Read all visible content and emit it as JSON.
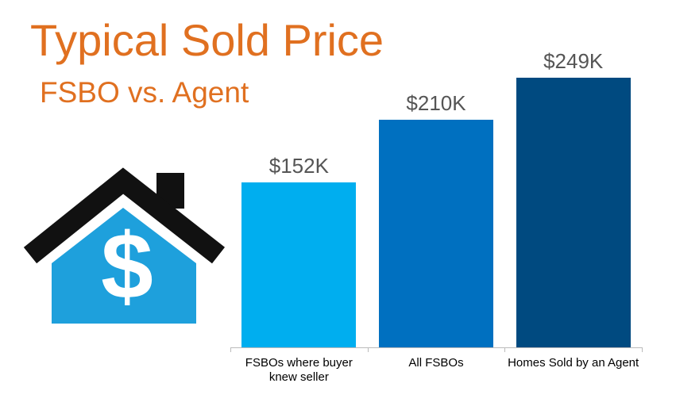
{
  "chart_data": {
    "type": "bar",
    "title": "Typical Sold Price",
    "subtitle": "FSBO vs. Agent",
    "categories": [
      "FSBOs where buyer knew seller",
      "All FSBOs",
      "Homes Sold by an Agent"
    ],
    "values": [
      152,
      210,
      249
    ],
    "value_labels": [
      "$152K",
      "$210K",
      "$249K"
    ],
    "colors": [
      "#00aeef",
      "#0070c0",
      "#004a80"
    ]
  }
}
